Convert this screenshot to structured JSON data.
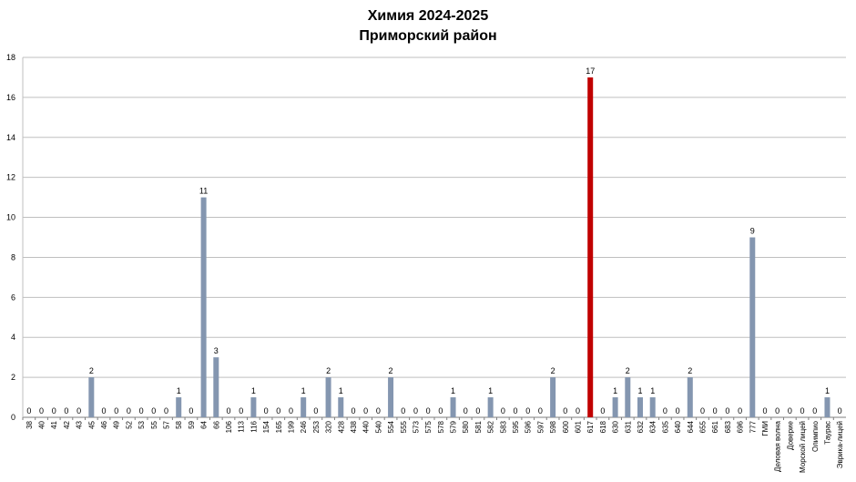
{
  "chart_data": {
    "type": "bar",
    "title": "Химия 2024-2025",
    "subtitle": "Приморский район",
    "xlabel": "",
    "ylabel": "",
    "ylim": [
      0,
      18
    ],
    "yticks": [
      0,
      2,
      4,
      6,
      8,
      10,
      12,
      14,
      16,
      18
    ],
    "grid": true,
    "legend": "none",
    "categories": [
      "38",
      "40",
      "41",
      "42",
      "43",
      "45",
      "46",
      "49",
      "52",
      "53",
      "55",
      "57",
      "58",
      "59",
      "64",
      "66",
      "106",
      "113",
      "116",
      "154",
      "165",
      "199",
      "246",
      "253",
      "320",
      "428",
      "438",
      "440",
      "540",
      "554",
      "555",
      "573",
      "575",
      "578",
      "579",
      "580",
      "581",
      "582",
      "583",
      "595",
      "596",
      "597",
      "598",
      "600",
      "601",
      "617",
      "618",
      "630",
      "631",
      "632",
      "634",
      "635",
      "640",
      "644",
      "655",
      "661",
      "683",
      "696",
      "777",
      "ГМИ",
      "Деловая волна",
      "Доверие",
      "Морской лицей",
      "Олимпио",
      "Таурас",
      "Эврика-лицей"
    ],
    "values": [
      0,
      0,
      0,
      0,
      0,
      2,
      0,
      0,
      0,
      0,
      0,
      0,
      1,
      0,
      11,
      3,
      0,
      0,
      1,
      0,
      0,
      0,
      1,
      0,
      2,
      1,
      0,
      0,
      0,
      2,
      0,
      0,
      0,
      0,
      1,
      0,
      0,
      1,
      0,
      0,
      0,
      0,
      2,
      0,
      0,
      17,
      0,
      1,
      2,
      1,
      1,
      0,
      0,
      2,
      0,
      0,
      0,
      0,
      9,
      0,
      0,
      0,
      0,
      0,
      1,
      0
    ],
    "highlight_category": "617",
    "colors": {
      "bar": "#8496b0",
      "highlight": "#c00000",
      "grid": "#bfbfbf",
      "axis": "#7f7f7f"
    }
  }
}
